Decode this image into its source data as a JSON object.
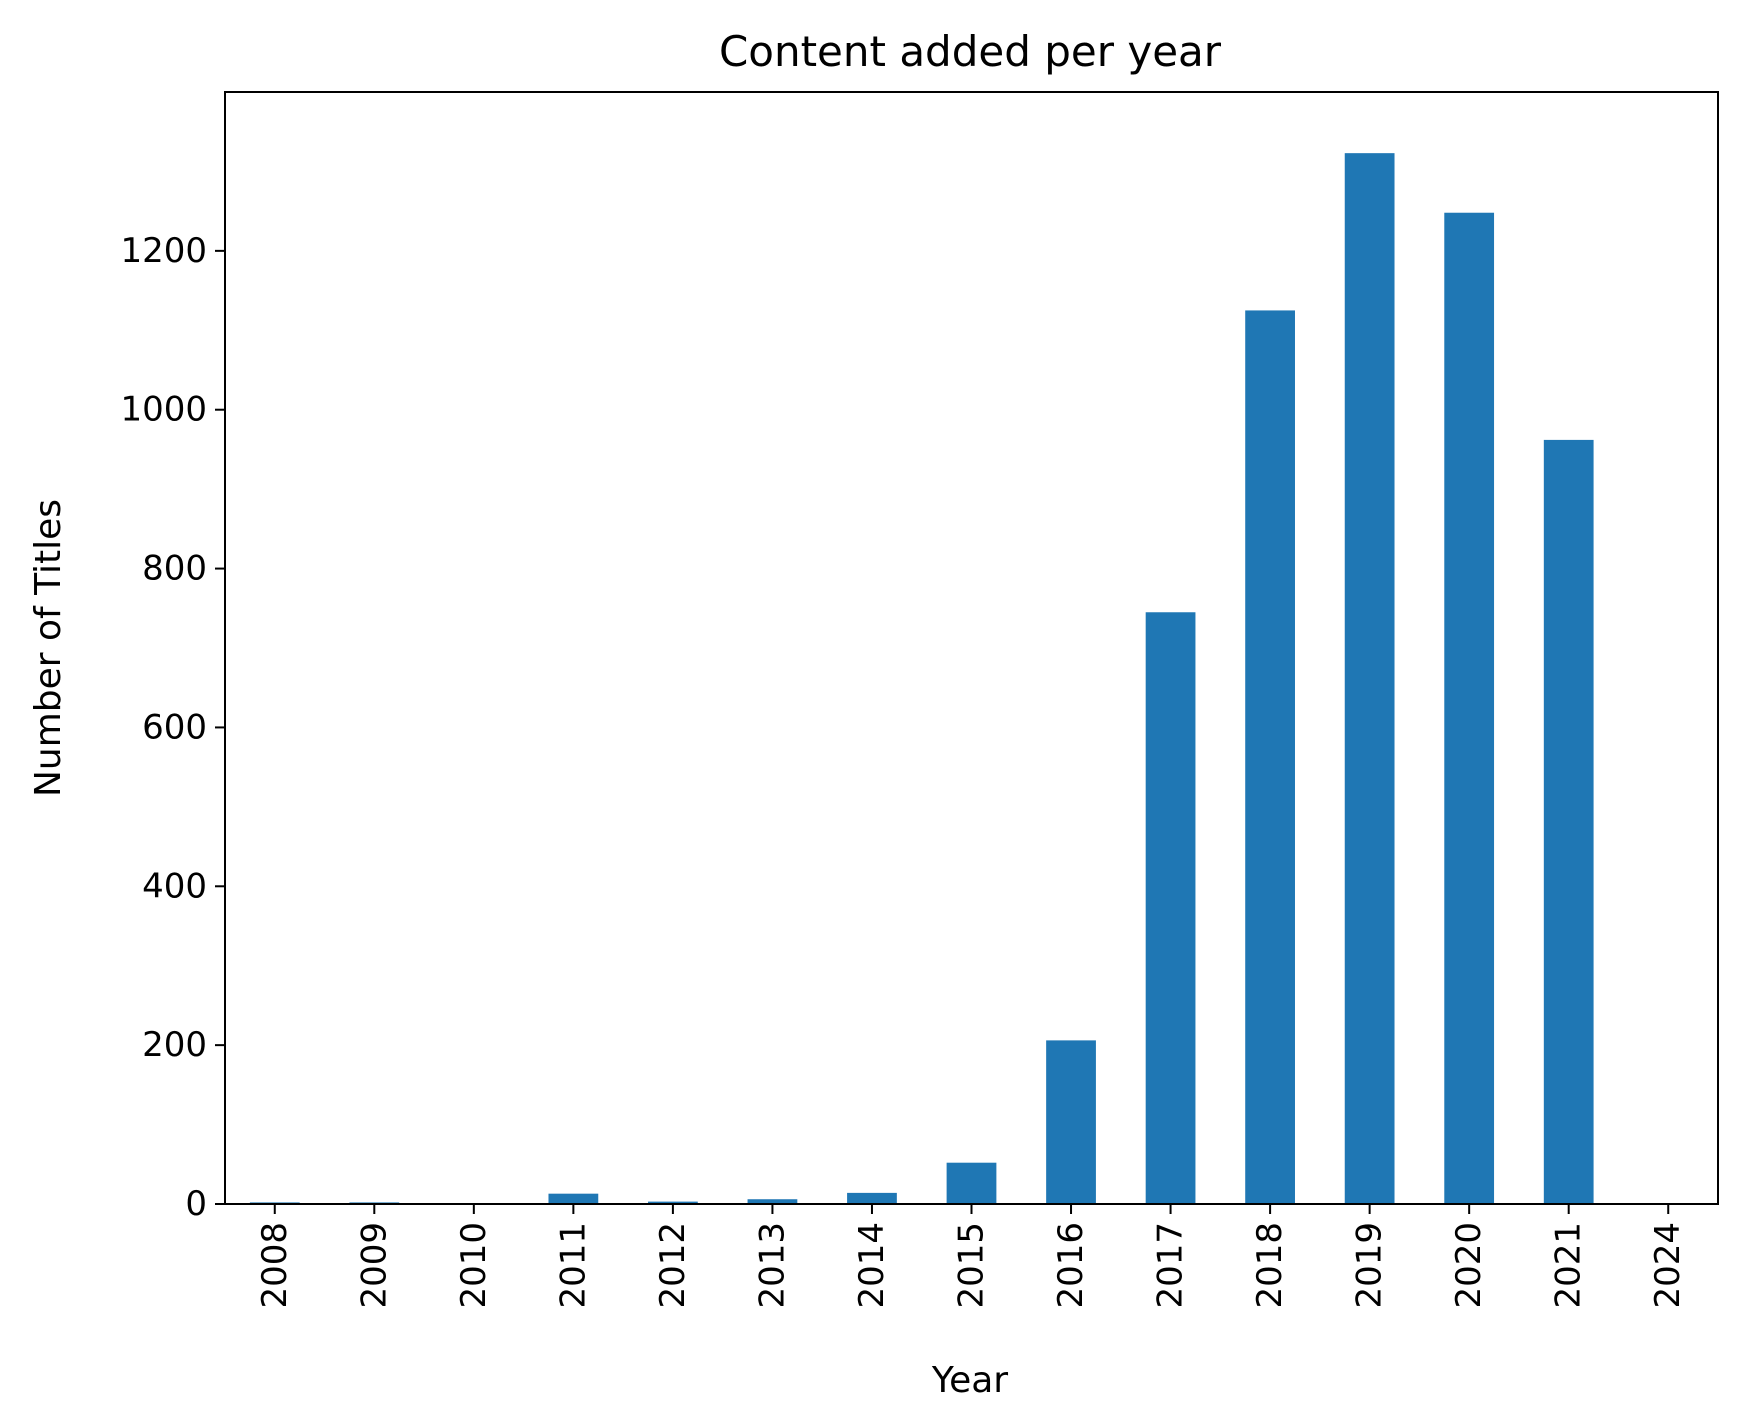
{
  "chart_data": {
    "type": "bar",
    "title": "Content added per year",
    "xlabel": "Year",
    "ylabel": "Number of Titles",
    "categories": [
      "2008",
      "2009",
      "2010",
      "2011",
      "2012",
      "2013",
      "2014",
      "2015",
      "2016",
      "2017",
      "2018",
      "2019",
      "2020",
      "2021",
      "2024"
    ],
    "values": [
      2,
      2,
      1,
      13,
      3,
      6,
      14,
      52,
      206,
      745,
      1125,
      1323,
      1248,
      962,
      1
    ],
    "ylim": [
      0,
      1400
    ],
    "yticks": [
      0,
      200,
      400,
      600,
      800,
      1000,
      1200
    ],
    "grid": false,
    "legend": "none",
    "bar_color": "#1f77b4"
  }
}
